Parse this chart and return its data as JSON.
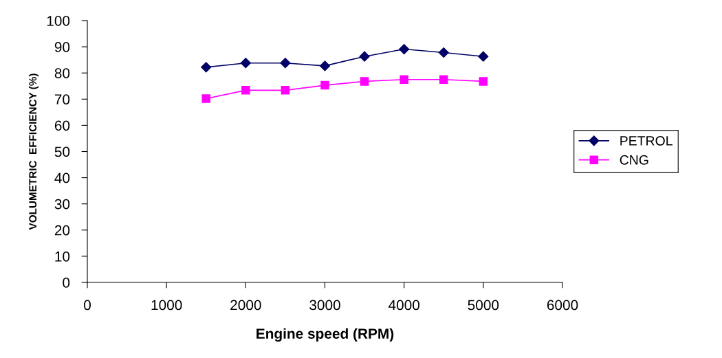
{
  "chart_data": {
    "type": "line",
    "xlabel": "Engine speed (RPM)",
    "ylabel": "VOLUMETRIC  EFFICIENCY (%)",
    "x": [
      1500,
      2000,
      2500,
      3000,
      3500,
      4000,
      4500,
      5000
    ],
    "series": [
      {
        "name": "PETROL",
        "color": "#000066",
        "marker": "diamond",
        "values": [
          82.2,
          83.8,
          83.8,
          82.7,
          86.3,
          89.1,
          87.8,
          86.3
        ]
      },
      {
        "name": "CNG",
        "color": "#ff00ff",
        "marker": "square",
        "values": [
          70.2,
          73.4,
          73.4,
          75.3,
          76.8,
          77.5,
          77.5,
          76.8
        ]
      }
    ],
    "xlim": [
      0,
      6000
    ],
    "xticks": [
      0,
      1000,
      2000,
      3000,
      4000,
      5000,
      6000
    ],
    "ylim": [
      0,
      100
    ],
    "yticks": [
      0,
      10,
      20,
      30,
      40,
      50,
      60,
      70,
      80,
      90,
      100
    ],
    "grid": false,
    "legend": "right"
  }
}
